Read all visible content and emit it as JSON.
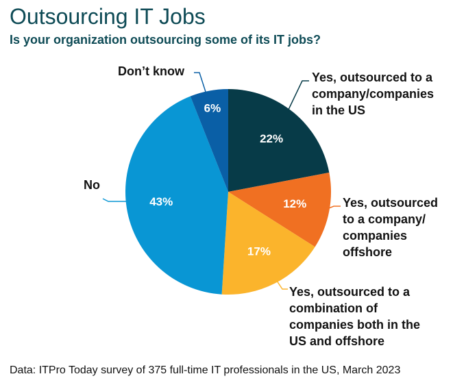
{
  "chart_data": {
    "type": "pie",
    "title": "Outsourcing IT Jobs",
    "subtitle": "Is your organization outsourcing some of its IT jobs?",
    "categories": [
      "Yes, outsourced to a company/companies in the US",
      "Yes, outsourced to a company/ companies offshore",
      "Yes, outsourced to a combination of companies both in the US and offshore",
      "No",
      "Don’t know"
    ],
    "values": [
      22,
      12,
      17,
      43,
      6
    ],
    "value_labels": [
      "22%",
      "12%",
      "17%",
      "43%",
      "6%"
    ],
    "colors": [
      "#073b48",
      "#f07022",
      "#fbb42c",
      "#0996d4",
      "#0a5fa6"
    ],
    "note": "Data: ITPro Today survey of 375 full-time IT professionals in the US, March 2023"
  }
}
